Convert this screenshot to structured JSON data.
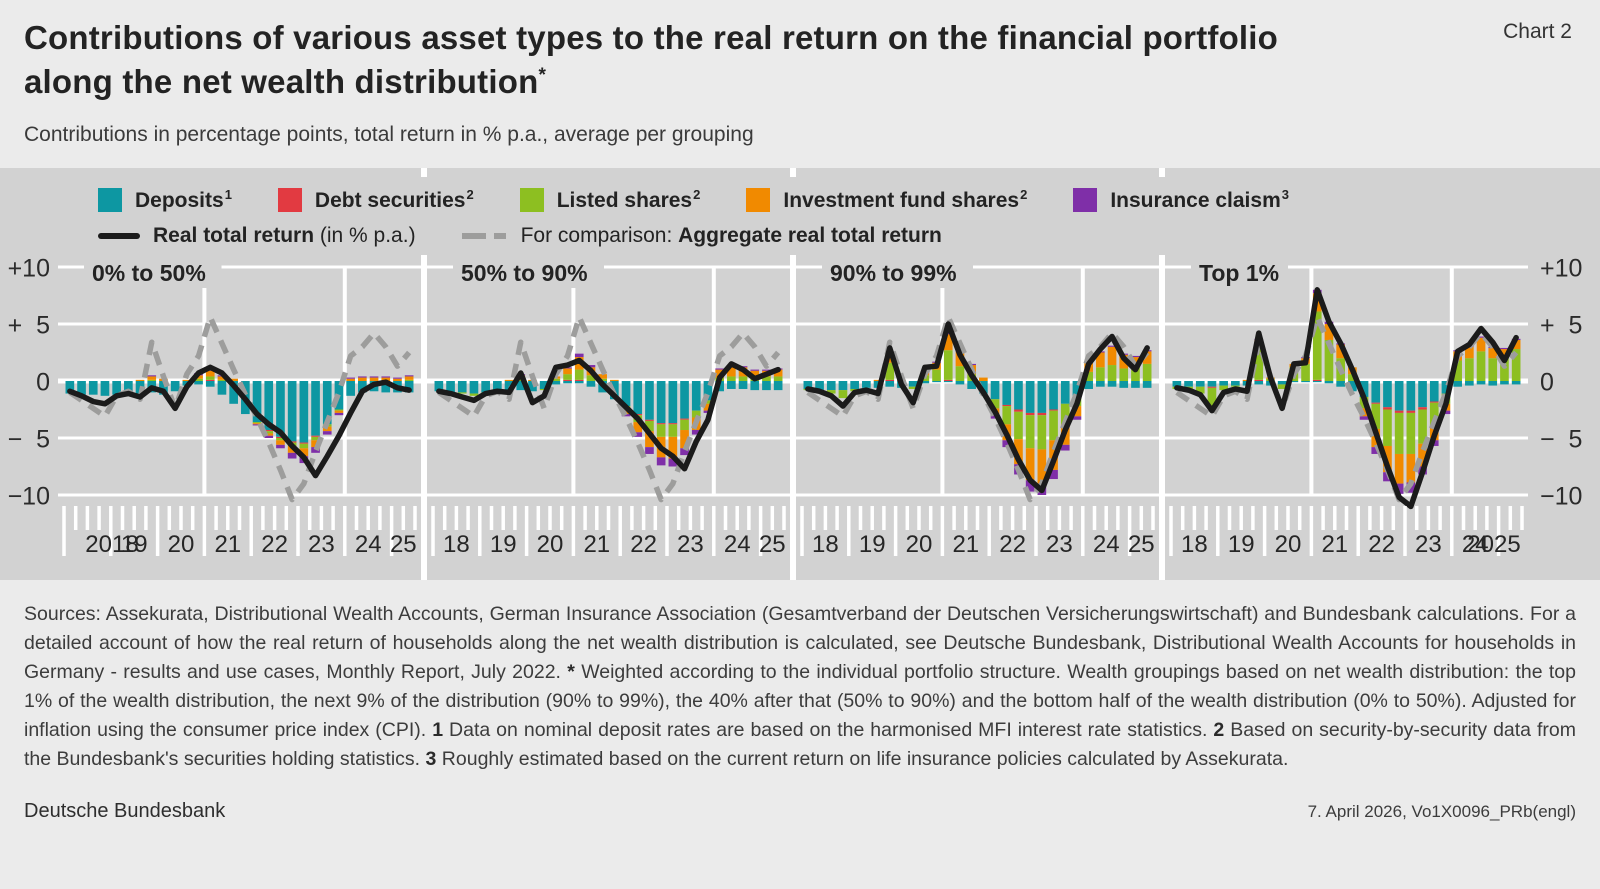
{
  "header": {
    "title_line1": "Contributions of various asset types to the real return on the financial portfolio",
    "title_line2": "along the net wealth distribution",
    "title_sup": "*",
    "chart_label": "Chart 2",
    "subtitle": "Contributions in percentage points, total return in % p.a., average per grouping"
  },
  "legend": {
    "items": [
      {
        "key": "deposits",
        "label": "Deposits",
        "sup": "1",
        "color": "#0d97a2"
      },
      {
        "key": "debt_securities",
        "label": "Debt securities",
        "sup": "2",
        "color": "#e23a41"
      },
      {
        "key": "listed_shares",
        "label": "Listed shares",
        "sup": "2",
        "color": "#8dbf21"
      },
      {
        "key": "fund_shares",
        "label": "Investment fund shares",
        "sup": "2",
        "color": "#f18a00"
      },
      {
        "key": "insurance_claims",
        "label": "Insurance claism",
        "sup": "3",
        "color": "#7f2fa8"
      }
    ],
    "real_line": {
      "color": "#1b1b1b",
      "runs": [
        {
          "t": "Real total return",
          "b": true
        },
        {
          "t": " (in % p.a.)",
          "b": false
        }
      ]
    },
    "aggregate_line": {
      "color": "#9d9d9c",
      "runs": [
        {
          "t": "For comparison: ",
          "b": false
        },
        {
          "t": "Aggregate real total return",
          "b": true
        }
      ]
    }
  },
  "axis": {
    "left_labels": [
      "+10",
      "+  5",
      "0",
      "−  5",
      "−10"
    ],
    "right_labels": [
      "+10",
      "+  5",
      "0",
      "−  5",
      "−10"
    ],
    "tick_values": [
      10,
      5,
      0,
      -5,
      -10
    ]
  },
  "chart_data": {
    "type": "bar",
    "stacked": true,
    "unit": "percentage points / % p.a.",
    "frequency": "quarterly",
    "x_range": "2018Q1–2025Q2",
    "ylim": [
      -12,
      11
    ],
    "grid": true,
    "y_ticks": [
      10,
      5,
      0,
      -5,
      -10
    ],
    "year_gridline_indices": [
      12,
      24
    ],
    "series_order": [
      "deposits",
      "debt_securities",
      "listed_shares",
      "fund_shares",
      "insurance_claims"
    ],
    "colors": {
      "deposits": "#0d97a2",
      "debt_securities": "#e23a41",
      "listed_shares": "#8dbf21",
      "fund_shares": "#f18a00",
      "insurance_claims": "#7f2fa8",
      "real_total_return": "#1b1b1b",
      "aggregate_real_total_return": "#9d9d9c"
    },
    "aggregate_real_total_return": [
      -1.0,
      -1.7,
      -2.4,
      -3.1,
      -1.3,
      -0.9,
      -1.6,
      3.4,
      0.4,
      -2.4,
      0.6,
      2.2,
      5.6,
      3.3,
      1.0,
      -1.2,
      -3.2,
      -5.4,
      -7.8,
      -10.4,
      -9.0,
      -6.2,
      -3.6,
      -1.0,
      2.2,
      3.0,
      4.2,
      3.0,
      1.3,
      2.5
    ],
    "panels": [
      {
        "title": "0% to 50%",
        "x_labels": [
          "2018",
          "19",
          "20",
          "21",
          "22",
          "23",
          "24",
          "25"
        ],
        "series": {
          "deposits": [
            -1.1,
            -1.2,
            -1.2,
            -1.3,
            -1.2,
            -1.1,
            -1.1,
            -1.0,
            -1.2,
            -0.9,
            -0.4,
            -0.3,
            -0.5,
            -1.2,
            -2.0,
            -2.9,
            -3.6,
            -4.3,
            -4.9,
            -5.3,
            -5.4,
            -4.8,
            -3.8,
            -2.5,
            -1.3,
            -1.0,
            -0.9,
            -1.0,
            -1.0,
            -1.0
          ],
          "debt_securities": [
            0,
            0,
            0,
            0,
            0,
            0,
            0,
            0,
            0,
            0,
            0,
            0,
            0.1,
            0,
            0,
            0,
            0,
            -0.1,
            -0.1,
            -0.1,
            -0.1,
            -0.1,
            0,
            0,
            0,
            0,
            0,
            0,
            0,
            0
          ],
          "listed_shares": [
            0,
            0,
            0,
            0,
            0,
            0,
            0,
            0.1,
            0,
            0,
            0,
            0.2,
            0.3,
            0.1,
            0,
            0,
            -0.1,
            -0.2,
            -0.2,
            -0.3,
            -0.4,
            -0.3,
            -0.2,
            -0.1,
            0,
            0,
            0,
            0,
            0,
            0.1
          ],
          "fund_shares": [
            0,
            0,
            0,
            0,
            0,
            0,
            0.1,
            0.3,
            0.2,
            0,
            0.1,
            0.3,
            0.5,
            0.3,
            0.2,
            0,
            -0.1,
            -0.2,
            -0.4,
            -0.6,
            -0.7,
            -0.6,
            -0.4,
            -0.2,
            0.2,
            0.3,
            0.3,
            0.3,
            0.2,
            0.3
          ],
          "insurance_claims": [
            0,
            0,
            0,
            0,
            0,
            0,
            0,
            0.1,
            0,
            0,
            0,
            0.2,
            0.2,
            0.1,
            0,
            0,
            -0.1,
            -0.2,
            -0.3,
            -0.5,
            -0.6,
            -0.5,
            -0.3,
            -0.2,
            0.1,
            0.1,
            0.1,
            0.1,
            0.1,
            0.1
          ]
        },
        "real_total_return": [
          -0.9,
          -1.3,
          -1.8,
          -2.0,
          -1.3,
          -1.1,
          -1.4,
          -0.6,
          -0.9,
          -2.4,
          -0.5,
          0.7,
          1.2,
          0.7,
          -0.4,
          -1.6,
          -2.9,
          -3.8,
          -4.5,
          -5.7,
          -6.7,
          -8.3,
          -6.6,
          -4.8,
          -2.8,
          -0.9,
          -0.3,
          -0.1,
          -0.6,
          -0.8
        ]
      },
      {
        "title": "50% to 90%",
        "x_labels": [
          "18",
          "19",
          "20",
          "21",
          "22",
          "23",
          "24",
          "25"
        ],
        "series": {
          "deposits": [
            -0.9,
            -1.0,
            -1.0,
            -1.1,
            -1.0,
            -0.9,
            -0.9,
            -0.8,
            -0.9,
            -0.7,
            -0.3,
            -0.2,
            -0.2,
            -0.5,
            -1.0,
            -1.6,
            -2.2,
            -2.9,
            -3.4,
            -3.7,
            -3.7,
            -3.3,
            -2.6,
            -1.7,
            -0.9,
            -0.7,
            -0.7,
            -0.8,
            -0.8,
            -0.8
          ],
          "debt_securities": [
            0,
            0,
            0,
            0,
            0,
            0,
            0,
            0,
            0,
            0,
            0,
            0.1,
            0.1,
            0,
            0,
            0,
            0,
            -0.1,
            -0.1,
            -0.1,
            -0.1,
            -0.1,
            0,
            0,
            0,
            0,
            0,
            0,
            0,
            0
          ],
          "listed_shares": [
            0,
            0,
            -0.1,
            -0.2,
            -0.2,
            0,
            0,
            0.2,
            0,
            -0.1,
            0.2,
            0.5,
            0.9,
            0.5,
            0.2,
            0,
            -0.3,
            -0.6,
            -0.9,
            -1.1,
            -1.1,
            -0.9,
            -0.6,
            -0.3,
            0.3,
            0.4,
            0.4,
            0.3,
            0.4,
            0.4
          ],
          "fund_shares": [
            0,
            0,
            0,
            0,
            0,
            0,
            0.1,
            0.3,
            0.1,
            0,
            0.2,
            0.5,
            1.1,
            0.7,
            0.4,
            0.1,
            -0.4,
            -0.9,
            -1.4,
            -1.8,
            -1.9,
            -1.6,
            -1.1,
            -0.6,
            0.7,
            0.9,
            0.8,
            0.6,
            0.5,
            0.6
          ],
          "insurance_claims": [
            0,
            0,
            0,
            0,
            0,
            0,
            0,
            0.1,
            0,
            0,
            0,
            0.1,
            0.3,
            0.2,
            0,
            0,
            -0.2,
            -0.4,
            -0.6,
            -0.7,
            -0.7,
            -0.6,
            -0.4,
            -0.2,
            0.1,
            0.1,
            0.1,
            0.1,
            0.1,
            0.1
          ]
        },
        "real_total_return": [
          -0.9,
          -1.1,
          -1.4,
          -1.7,
          -1.1,
          -0.9,
          -1.0,
          0.7,
          -1.9,
          -1.3,
          1.2,
          1.4,
          1.8,
          0.9,
          -0.3,
          -1.3,
          -2.3,
          -3.3,
          -4.6,
          -5.9,
          -6.6,
          -7.7,
          -5.3,
          -3.4,
          0.3,
          1.5,
          1.0,
          0.2,
          0.6,
          1.0
        ]
      },
      {
        "title": "90% to 99%",
        "x_labels": [
          "18",
          "19",
          "20",
          "21",
          "22",
          "23",
          "24",
          "25"
        ],
        "series": {
          "deposits": [
            -0.7,
            -0.8,
            -0.8,
            -0.8,
            -0.7,
            -0.6,
            -0.6,
            -0.5,
            -0.6,
            -0.5,
            -0.2,
            -0.1,
            -0.1,
            -0.3,
            -0.7,
            -1.1,
            -1.6,
            -2.1,
            -2.5,
            -2.8,
            -2.8,
            -2.5,
            -2.0,
            -1.3,
            -0.7,
            -0.5,
            -0.5,
            -0.6,
            -0.6,
            -0.6
          ],
          "debt_securities": [
            0,
            0,
            0,
            0,
            0,
            0,
            0,
            0.1,
            0,
            0,
            0,
            0,
            0.1,
            0,
            0,
            0,
            0,
            -0.1,
            -0.2,
            -0.2,
            -0.2,
            -0.1,
            0,
            0,
            0,
            0,
            0,
            0,
            0,
            0
          ],
          "listed_shares": [
            -0.1,
            -0.1,
            -0.3,
            -0.7,
            -0.2,
            0,
            0,
            1.5,
            0,
            -0.2,
            0.5,
            1.0,
            2.6,
            1.3,
            0.6,
            0,
            -0.8,
            -1.6,
            -2.4,
            -2.9,
            -3.0,
            -2.6,
            -1.8,
            -0.9,
            0.8,
            1.2,
            1.4,
            1.1,
            1.2,
            1.5
          ],
          "fund_shares": [
            0,
            0,
            0,
            0,
            0,
            0,
            0.1,
            0.8,
            0.1,
            0,
            0.3,
            0.6,
            1.4,
            1.3,
            0.8,
            0.3,
            -0.6,
            -1.4,
            -2.2,
            -2.8,
            -3.0,
            -2.6,
            -1.8,
            -0.9,
            0.8,
            1.3,
            1.6,
            1.2,
            0.9,
            1.1
          ],
          "insurance_claims": [
            0,
            0,
            0,
            0,
            0,
            0,
            0,
            0.1,
            0,
            0,
            0,
            0.1,
            0.3,
            0.2,
            0.1,
            0,
            -0.3,
            -0.6,
            -0.9,
            -1.0,
            -1.0,
            -0.8,
            -0.5,
            -0.3,
            0.1,
            0.1,
            0.1,
            0.1,
            0.1,
            0.1
          ]
        },
        "real_total_return": [
          -0.7,
          -0.9,
          -1.3,
          -2.2,
          -1.0,
          -0.8,
          -1.1,
          2.9,
          -0.3,
          -1.9,
          1.2,
          1.3,
          5.0,
          2.3,
          0.5,
          -1.0,
          -2.7,
          -4.7,
          -6.9,
          -8.7,
          -9.6,
          -7.0,
          -4.3,
          -2.0,
          1.5,
          2.8,
          3.9,
          2.0,
          1.0,
          2.9
        ]
      },
      {
        "title": "Top 1%",
        "x_labels": [
          "18",
          "19",
          "20",
          "21",
          "22",
          "23",
          "24",
          "2025"
        ],
        "series": {
          "deposits": [
            -0.5,
            -0.5,
            -0.5,
            -0.5,
            -0.4,
            -0.4,
            -0.4,
            -0.3,
            -0.4,
            -0.3,
            -0.1,
            -0.1,
            -0.1,
            -0.2,
            -0.5,
            -0.9,
            -1.4,
            -1.9,
            -2.3,
            -2.6,
            -2.6,
            -2.3,
            -1.8,
            -1.1,
            -0.5,
            -0.4,
            -0.3,
            -0.4,
            -0.3,
            -0.3
          ],
          "debt_securities": [
            0,
            0,
            0,
            -0.1,
            0,
            0,
            0,
            0.1,
            0,
            0,
            0,
            0,
            0.1,
            0,
            0,
            0,
            0,
            -0.1,
            -0.2,
            -0.2,
            -0.2,
            -0.2,
            -0.1,
            0,
            0,
            0,
            0,
            0,
            0,
            0
          ],
          "listed_shares": [
            -0.2,
            -0.3,
            -0.6,
            -1.6,
            -0.4,
            -0.1,
            0,
            2.9,
            0.2,
            -0.4,
            1.2,
            1.5,
            6.0,
            3.6,
            2.0,
            0.6,
            -1.0,
            -2.2,
            -3.2,
            -3.6,
            -3.6,
            -3.0,
            -2.0,
            -0.9,
            1.8,
            2.0,
            2.6,
            2.0,
            2.2,
            2.8
          ],
          "fund_shares": [
            0,
            0,
            0,
            0,
            0,
            0,
            0.1,
            0.6,
            0.1,
            0,
            0.3,
            0.5,
            1.6,
            1.4,
            1.2,
            0.6,
            -0.7,
            -1.6,
            -2.3,
            -2.6,
            -2.5,
            -2.0,
            -1.3,
            -0.6,
            0.8,
            1.0,
            1.2,
            0.9,
            0.6,
            0.8
          ],
          "insurance_claims": [
            0,
            0,
            0,
            0,
            0,
            0,
            0,
            0.1,
            0,
            0,
            0,
            0.1,
            0.3,
            0.2,
            0.1,
            0,
            -0.3,
            -0.6,
            -0.8,
            -0.9,
            -0.9,
            -0.7,
            -0.5,
            -0.3,
            0.1,
            0.1,
            0.1,
            0.1,
            0.1,
            0.1
          ]
        },
        "real_total_return": [
          -0.6,
          -0.8,
          -1.2,
          -2.6,
          -1.0,
          -0.7,
          -0.9,
          4.2,
          0.3,
          -2.4,
          1.5,
          1.6,
          8.0,
          5.2,
          3.3,
          1.0,
          -1.5,
          -4.5,
          -7.5,
          -10.2,
          -11.0,
          -8.0,
          -4.8,
          -2.0,
          2.6,
          3.2,
          4.6,
          3.4,
          1.8,
          3.8
        ]
      }
    ]
  },
  "footnote": {
    "runs": [
      {
        "t": "Sources: Assekurata, Distributional Wealth Accounts, German Insurance Association (Gesamtverband der Deutschen Versicherungswirtschaft) and Bundesbank calculations. For a detailed account of how the real return of households along the net wealth distribution is calculated, see Deutsche Bundesbank, Distributional Wealth Accounts for households in Germany - results and use cases, Monthly Report, July 2022. ",
        "b": false
      },
      {
        "t": "*",
        "b": true
      },
      {
        "t": " Weighted according to the individual portfolio structure. Wealth groupings based on net wealth distribution: the top 1% of the wealth distribution, the next 9% of the distribution (90% to 99%), the 40% after that (50% to 90%) and the bottom half of the wealth distribution (0% to 50%). Adjusted for inflation using the consumer price index (CPI). ",
        "b": false
      },
      {
        "t": "1",
        "b": true
      },
      {
        "t": " Data on nominal deposit rates are based on the harmonised MFI interest rate statistics. ",
        "b": false
      },
      {
        "t": "2",
        "b": true
      },
      {
        "t": " Based on security-by-security data from the Bundesbank's securities holding statistics. ",
        "b": false
      },
      {
        "t": "3",
        "b": true
      },
      {
        "t": " Roughly estimated based on the current return on life insurance policies calculated by Assekurata.",
        "b": false
      }
    ]
  },
  "footer": {
    "left": "Deutsche Bundesbank",
    "right": "7. April 2026, Vo1X0096_PRb(engl)"
  }
}
